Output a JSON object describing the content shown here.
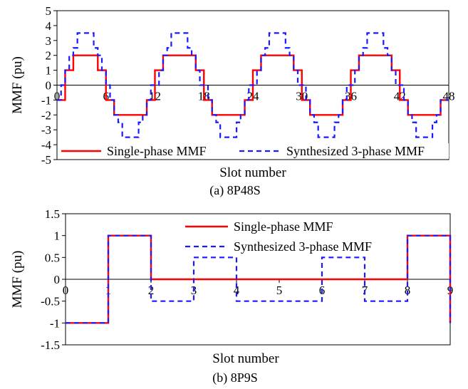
{
  "chart_data": [
    {
      "type": "line",
      "caption": "(a) 8P48S",
      "xlabel": "Slot number",
      "ylabel": "MMF (pu)",
      "xlim": [
        0,
        48
      ],
      "ylim": [
        -5,
        5
      ],
      "x_ticks": [
        "0",
        "6",
        "12",
        "18",
        "24",
        "30",
        "36",
        "42",
        "48"
      ],
      "y_ticks": [
        "5",
        "4",
        "3",
        "2",
        "1",
        "0",
        "-1",
        "-2",
        "-3",
        "-4",
        "-5"
      ],
      "grid": false,
      "legend_position": "bottom",
      "series": [
        {
          "name": "Single-phase MMF",
          "color": "#ff0000",
          "style": "solid",
          "points": [
            [
              0,
              -1
            ],
            [
              1,
              -1
            ],
            [
              1,
              1
            ],
            [
              2,
              1
            ],
            [
              2,
              2
            ],
            [
              5,
              2
            ],
            [
              5,
              1
            ],
            [
              6,
              1
            ],
            [
              6,
              -1
            ],
            [
              7,
              -1
            ],
            [
              7,
              -2
            ],
            [
              11,
              -2
            ],
            [
              11,
              -1
            ],
            [
              12,
              -1
            ],
            [
              12,
              1
            ],
            [
              13,
              1
            ],
            [
              13,
              2
            ],
            [
              17,
              2
            ],
            [
              17,
              1
            ],
            [
              18,
              1
            ],
            [
              18,
              -1
            ],
            [
              19,
              -1
            ],
            [
              19,
              -2
            ],
            [
              23,
              -2
            ],
            [
              23,
              -1
            ],
            [
              24,
              -1
            ],
            [
              24,
              1
            ],
            [
              25,
              1
            ],
            [
              25,
              2
            ],
            [
              29,
              2
            ],
            [
              29,
              1
            ],
            [
              30,
              1
            ],
            [
              30,
              -1
            ],
            [
              31,
              -1
            ],
            [
              31,
              -2
            ],
            [
              35,
              -2
            ],
            [
              35,
              -1
            ],
            [
              36,
              -1
            ],
            [
              36,
              1
            ],
            [
              37,
              1
            ],
            [
              37,
              2
            ],
            [
              41,
              2
            ],
            [
              41,
              1
            ],
            [
              42,
              1
            ],
            [
              42,
              -1
            ],
            [
              43,
              -1
            ],
            [
              43,
              -2
            ],
            [
              47,
              -2
            ],
            [
              47,
              -1
            ],
            [
              48,
              -1
            ]
          ]
        },
        {
          "name": "Synthesized 3-phase MMF",
          "color": "#1a1aff",
          "style": "dashed",
          "points": [
            [
              0,
              -1
            ],
            [
              0.5,
              -1
            ],
            [
              0.5,
              0
            ],
            [
              1,
              0
            ],
            [
              1,
              1
            ],
            [
              1.5,
              1
            ],
            [
              1.5,
              2
            ],
            [
              2,
              2
            ],
            [
              2,
              2.5
            ],
            [
              2.5,
              2.5
            ],
            [
              2.5,
              3.5
            ],
            [
              4.5,
              3.5
            ],
            [
              4.5,
              2.5
            ],
            [
              5,
              2.5
            ],
            [
              5,
              2
            ],
            [
              5.5,
              2
            ],
            [
              5.5,
              1
            ],
            [
              6,
              1
            ],
            [
              6,
              0
            ],
            [
              6.5,
              0
            ],
            [
              6.5,
              -1
            ],
            [
              7,
              -1
            ],
            [
              7,
              -2
            ],
            [
              7.5,
              -2
            ],
            [
              7.5,
              -2.5
            ],
            [
              8,
              -2.5
            ],
            [
              8,
              -3.5
            ],
            [
              10,
              -3.5
            ],
            [
              10,
              -2.5
            ],
            [
              10.5,
              -2.5
            ],
            [
              10.5,
              -2
            ],
            [
              11,
              -2
            ],
            [
              11,
              -1
            ],
            [
              11.5,
              -1
            ],
            [
              11.5,
              0
            ],
            [
              12.5,
              0
            ],
            [
              12.5,
              1
            ],
            [
              13,
              1
            ],
            [
              13,
              2
            ],
            [
              13.5,
              2
            ],
            [
              13.5,
              2.5
            ],
            [
              14,
              2.5
            ],
            [
              14,
              3.5
            ],
            [
              16,
              3.5
            ],
            [
              16,
              2.5
            ],
            [
              16.5,
              2.5
            ],
            [
              16.5,
              2
            ],
            [
              17,
              2
            ],
            [
              17,
              1
            ],
            [
              17.5,
              1
            ],
            [
              17.5,
              0
            ],
            [
              18.5,
              0
            ],
            [
              18.5,
              -1
            ],
            [
              19,
              -1
            ],
            [
              19,
              -2
            ],
            [
              19.5,
              -2
            ],
            [
              19.5,
              -2.5
            ],
            [
              20,
              -2.5
            ],
            [
              20,
              -3.5
            ],
            [
              22,
              -3.5
            ],
            [
              22,
              -2.5
            ],
            [
              22.5,
              -2.5
            ],
            [
              22.5,
              -2
            ],
            [
              23,
              -2
            ],
            [
              23,
              -1
            ],
            [
              23.5,
              -1
            ],
            [
              23.5,
              0
            ],
            [
              24.5,
              0
            ],
            [
              24.5,
              1
            ],
            [
              25,
              1
            ],
            [
              25,
              2
            ],
            [
              25.5,
              2
            ],
            [
              25.5,
              2.5
            ],
            [
              26,
              2.5
            ],
            [
              26,
              3.5
            ],
            [
              28,
              3.5
            ],
            [
              28,
              2.5
            ],
            [
              28.5,
              2.5
            ],
            [
              28.5,
              2
            ],
            [
              29,
              2
            ],
            [
              29,
              1
            ],
            [
              29.5,
              1
            ],
            [
              29.5,
              0
            ],
            [
              30.5,
              0
            ],
            [
              30.5,
              -1
            ],
            [
              31,
              -1
            ],
            [
              31,
              -2
            ],
            [
              31.5,
              -2
            ],
            [
              31.5,
              -2.5
            ],
            [
              32,
              -2.5
            ],
            [
              32,
              -3.5
            ],
            [
              34,
              -3.5
            ],
            [
              34,
              -2.5
            ],
            [
              34.5,
              -2.5
            ],
            [
              34.5,
              -2
            ],
            [
              35,
              -2
            ],
            [
              35,
              -1
            ],
            [
              35.5,
              -1
            ],
            [
              35.5,
              0
            ],
            [
              36.5,
              0
            ],
            [
              36.5,
              1
            ],
            [
              37,
              1
            ],
            [
              37,
              2
            ],
            [
              37.5,
              2
            ],
            [
              37.5,
              2.5
            ],
            [
              38,
              2.5
            ],
            [
              38,
              3.5
            ],
            [
              40,
              3.5
            ],
            [
              40,
              2.5
            ],
            [
              40.5,
              2.5
            ],
            [
              40.5,
              2
            ],
            [
              41,
              2
            ],
            [
              41,
              1
            ],
            [
              41.5,
              1
            ],
            [
              41.5,
              0
            ],
            [
              42.5,
              0
            ],
            [
              42.5,
              -1
            ],
            [
              43,
              -1
            ],
            [
              43,
              -2
            ],
            [
              43.5,
              -2
            ],
            [
              43.5,
              -2.5
            ],
            [
              44,
              -2.5
            ],
            [
              44,
              -3.5
            ],
            [
              46,
              -3.5
            ],
            [
              46,
              -2.5
            ],
            [
              46.5,
              -2.5
            ],
            [
              46.5,
              -2
            ],
            [
              47,
              -2
            ],
            [
              47,
              -1
            ],
            [
              48,
              -1
            ]
          ]
        }
      ]
    },
    {
      "type": "line",
      "caption": "(b) 8P9S",
      "xlabel": "Slot number",
      "ylabel": "MMF (pu)",
      "xlim": [
        0,
        9
      ],
      "ylim": [
        -1.5,
        1.5
      ],
      "x_ticks": [
        "0",
        "1",
        "2",
        "3",
        "4",
        "5",
        "6",
        "7",
        "8",
        "9"
      ],
      "y_ticks": [
        "1.5",
        "1",
        "0.5",
        "0",
        "-0.5",
        "-1",
        "-1.5"
      ],
      "grid": false,
      "legend_position": "top-center",
      "series": [
        {
          "name": "Single-phase MMF",
          "color": "#ff0000",
          "style": "solid",
          "points": [
            [
              0,
              -1
            ],
            [
              1,
              -1
            ],
            [
              1,
              1
            ],
            [
              2,
              1
            ],
            [
              2,
              0
            ],
            [
              8,
              0
            ],
            [
              8,
              1
            ],
            [
              9,
              1
            ],
            [
              9,
              -1
            ]
          ]
        },
        {
          "name": "Synthesized 3-phase MMF",
          "color": "#1a1aff",
          "style": "dashed",
          "points": [
            [
              0,
              -1
            ],
            [
              1,
              -1
            ],
            [
              1,
              1
            ],
            [
              2,
              1
            ],
            [
              2,
              -0.5
            ],
            [
              3,
              -0.5
            ],
            [
              3,
              0.5
            ],
            [
              4,
              0.5
            ],
            [
              4,
              -0.5
            ],
            [
              6,
              -0.5
            ],
            [
              6,
              0.5
            ],
            [
              7,
              0.5
            ],
            [
              7,
              -0.5
            ],
            [
              8,
              -0.5
            ],
            [
              8,
              1
            ],
            [
              9,
              1
            ],
            [
              9,
              -1
            ]
          ]
        }
      ]
    }
  ]
}
